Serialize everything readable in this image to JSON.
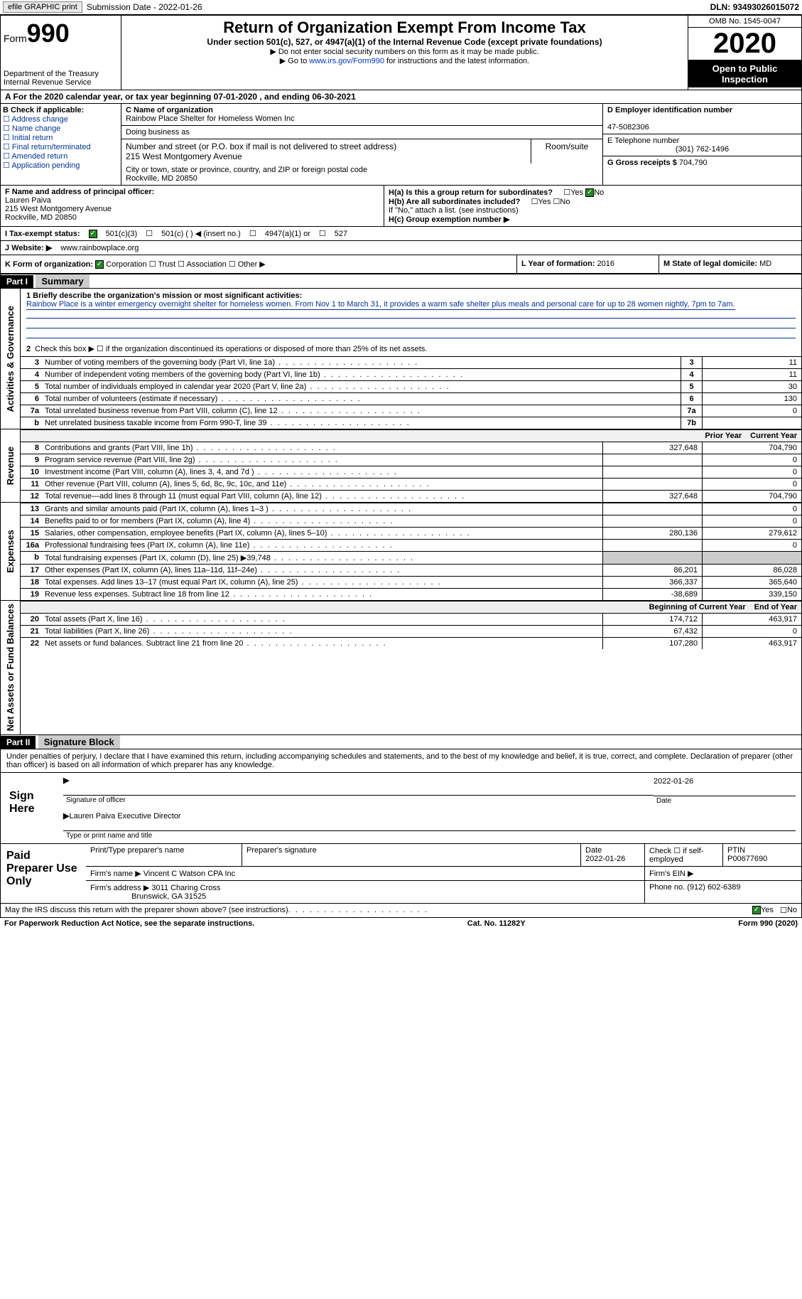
{
  "top": {
    "efile": "efile GRAPHIC print",
    "sub_date_label": "Submission Date - ",
    "sub_date": "2022-01-26",
    "dln_label": "DLN: ",
    "dln": "93493026015072"
  },
  "hdr": {
    "form_label": "Form",
    "form_num": "990",
    "dept": "Department of the Treasury\nInternal Revenue Service",
    "title": "Return of Organization Exempt From Income Tax",
    "sub": "Under section 501(c), 527, or 4947(a)(1) of the Internal Revenue Code (except private foundations)",
    "note1": "▶ Do not enter social security numbers on this form as it may be made public.",
    "note2a": "▶ Go to ",
    "note2_link": "www.irs.gov/Form990",
    "note2b": " for instructions and the latest information.",
    "omb": "OMB No. 1545-0047",
    "year": "2020",
    "open": "Open to Public Inspection"
  },
  "a_line": "A For the 2020 calendar year, or tax year beginning 07-01-2020   , and ending 06-30-2021",
  "b": {
    "hdr": "B Check if applicable:",
    "opts": [
      "Address change",
      "Name change",
      "Initial return",
      "Final return/terminated",
      "Amended return",
      "Application pending"
    ]
  },
  "c": {
    "name_lbl": "C Name of organization",
    "name": "Rainbow Place Shelter for Homeless Women Inc",
    "dba_lbl": "Doing business as",
    "dba": "",
    "addr_lbl": "Number and street (or P.O. box if mail is not delivered to street address)",
    "addr": "215 West Montgomery Avenue",
    "room_lbl": "Room/suite",
    "city_lbl": "City or town, state or province, country, and ZIP or foreign postal code",
    "city": "Rockville, MD  20850"
  },
  "d": {
    "ein_lbl": "D Employer identification number",
    "ein": "47-5082306",
    "phone_lbl": "E Telephone number",
    "phone": "(301) 762-1496",
    "gross_lbl": "G Gross receipts $ ",
    "gross": "704,790"
  },
  "f": {
    "lbl": "F  Name and address of principal officer:",
    "name": "Lauren Paiva",
    "addr": "215 West Montgomery Avenue",
    "city": "Rockville, MD  20850"
  },
  "h": {
    "a_lbl": "H(a)  Is this a group return for subordinates?",
    "b_lbl": "H(b)  Are all subordinates included?",
    "note": "If \"No,\" attach a list. (see instructions)",
    "c_lbl": "H(c)  Group exemption number ▶",
    "yes": "Yes",
    "no": "No"
  },
  "i": {
    "lbl": "I  Tax-exempt status:",
    "o1": "501(c)(3)",
    "o2": "501(c) (  ) ◀ (insert no.)",
    "o3": "4947(a)(1) or",
    "o4": "527"
  },
  "j": {
    "lbl": "J  Website: ▶ ",
    "val": "www.rainbowplace.org"
  },
  "k": {
    "lbl": "K Form of organization:",
    "o1": "Corporation",
    "o2": "Trust",
    "o3": "Association",
    "o4": "Other ▶",
    "l_lbl": "L Year of formation: ",
    "l_val": "2016",
    "m_lbl": "M State of legal domicile: ",
    "m_val": "MD"
  },
  "part1": {
    "hdr": "Part I",
    "title": "Summary"
  },
  "mission": {
    "lbl": "1  Briefly describe the organization's mission or most significant activities:",
    "text": "Rainbow Place is a winter emergency overnight shelter for homeless women. From Nov 1 to March 31, it provides a warm safe shelter plus meals and personal care for up to 28 women nightly, 7pm to 7am."
  },
  "line2": "Check this box ▶ ☐  if the organization discontinued its operations or disposed of more than 25% of its net assets.",
  "gov_lines": [
    {
      "n": "3",
      "d": "Number of voting members of the governing body (Part VI, line 1a)",
      "b": "3",
      "v": "11"
    },
    {
      "n": "4",
      "d": "Number of independent voting members of the governing body (Part VI, line 1b)",
      "b": "4",
      "v": "11"
    },
    {
      "n": "5",
      "d": "Total number of individuals employed in calendar year 2020 (Part V, line 2a)",
      "b": "5",
      "v": "30"
    },
    {
      "n": "6",
      "d": "Total number of volunteers (estimate if necessary)",
      "b": "6",
      "v": "130"
    },
    {
      "n": "7a",
      "d": "Total unrelated business revenue from Part VIII, column (C), line 12",
      "b": "7a",
      "v": "0"
    },
    {
      "n": "b",
      "d": "Net unrelated business taxable income from Form 990-T, line 39",
      "b": "7b",
      "v": ""
    }
  ],
  "col_hdrs": {
    "py": "Prior Year",
    "cy": "Current Year"
  },
  "rev_lines": [
    {
      "n": "8",
      "d": "Contributions and grants (Part VIII, line 1h)",
      "py": "327,648",
      "cy": "704,790"
    },
    {
      "n": "9",
      "d": "Program service revenue (Part VIII, line 2g)",
      "py": "",
      "cy": "0"
    },
    {
      "n": "10",
      "d": "Investment income (Part VIII, column (A), lines 3, 4, and 7d )",
      "py": "",
      "cy": "0"
    },
    {
      "n": "11",
      "d": "Other revenue (Part VIII, column (A), lines 5, 6d, 8c, 9c, 10c, and 11e)",
      "py": "",
      "cy": "0"
    },
    {
      "n": "12",
      "d": "Total revenue—add lines 8 through 11 (must equal Part VIII, column (A), line 12)",
      "py": "327,648",
      "cy": "704,790"
    }
  ],
  "exp_lines": [
    {
      "n": "13",
      "d": "Grants and similar amounts paid (Part IX, column (A), lines 1–3 )",
      "py": "",
      "cy": "0"
    },
    {
      "n": "14",
      "d": "Benefits paid to or for members (Part IX, column (A), line 4)",
      "py": "",
      "cy": "0"
    },
    {
      "n": "15",
      "d": "Salaries, other compensation, employee benefits (Part IX, column (A), lines 5–10)",
      "py": "280,136",
      "cy": "279,612"
    },
    {
      "n": "16a",
      "d": "Professional fundraising fees (Part IX, column (A), line 11e)",
      "py": "",
      "cy": "0"
    },
    {
      "n": "b",
      "d": "Total fundraising expenses (Part IX, column (D), line 25) ▶39,748",
      "py": "gray",
      "cy": "gray"
    },
    {
      "n": "17",
      "d": "Other expenses (Part IX, column (A), lines 11a–11d, 11f–24e)",
      "py": "86,201",
      "cy": "86,028"
    },
    {
      "n": "18",
      "d": "Total expenses. Add lines 13–17 (must equal Part IX, column (A), line 25)",
      "py": "366,337",
      "cy": "365,640"
    },
    {
      "n": "19",
      "d": "Revenue less expenses. Subtract line 18 from line 12",
      "py": "-38,689",
      "cy": "339,150"
    }
  ],
  "bal_hdrs": {
    "py": "Beginning of Current Year",
    "cy": "End of Year"
  },
  "bal_lines": [
    {
      "n": "20",
      "d": "Total assets (Part X, line 16)",
      "py": "174,712",
      "cy": "463,917"
    },
    {
      "n": "21",
      "d": "Total liabilities (Part X, line 26)",
      "py": "67,432",
      "cy": "0"
    },
    {
      "n": "22",
      "d": "Net assets or fund balances. Subtract line 21 from line 20",
      "py": "107,280",
      "cy": "463,917"
    }
  ],
  "vert": {
    "gov": "Activities & Governance",
    "rev": "Revenue",
    "exp": "Expenses",
    "bal": "Net Assets or Fund Balances"
  },
  "part2": {
    "hdr": "Part II",
    "title": "Signature Block"
  },
  "penalty": "Under penalties of perjury, I declare that I have examined this return, including accompanying schedules and statements, and to the best of my knowledge and belief, it is true, correct, and complete. Declaration of preparer (other than officer) is based on all information of which preparer has any knowledge.",
  "sign": {
    "here": "Sign Here",
    "sig_lbl": "Signature of officer",
    "date_lbl": "Date",
    "date": "2022-01-26",
    "name": "Lauren Paiva  Executive Director",
    "name_lbl": "Type or print name and title"
  },
  "paid": {
    "title": "Paid Preparer Use Only",
    "p1": "Print/Type preparer's name",
    "p2": "Preparer's signature",
    "p3": "Date",
    "p3v": "2022-01-26",
    "p4": "Check ☐ if self-employed",
    "p5": "PTIN",
    "p5v": "P00677690",
    "firm_lbl": "Firm's name    ▶ ",
    "firm": "Vincent C Watson CPA Inc",
    "ein_lbl": "Firm's EIN ▶",
    "addr_lbl": "Firm's address ▶ ",
    "addr1": "3011 Charing Cross",
    "addr2": "Brunswick, GA  31525",
    "phone_lbl": "Phone no. ",
    "phone": "(912) 602-6389"
  },
  "discuss": "May the IRS discuss this return with the preparer shown above? (see instructions)",
  "bottom": {
    "pra": "For Paperwork Reduction Act Notice, see the separate instructions.",
    "cat": "Cat. No. 11282Y",
    "form": "Form 990 (2020)"
  }
}
